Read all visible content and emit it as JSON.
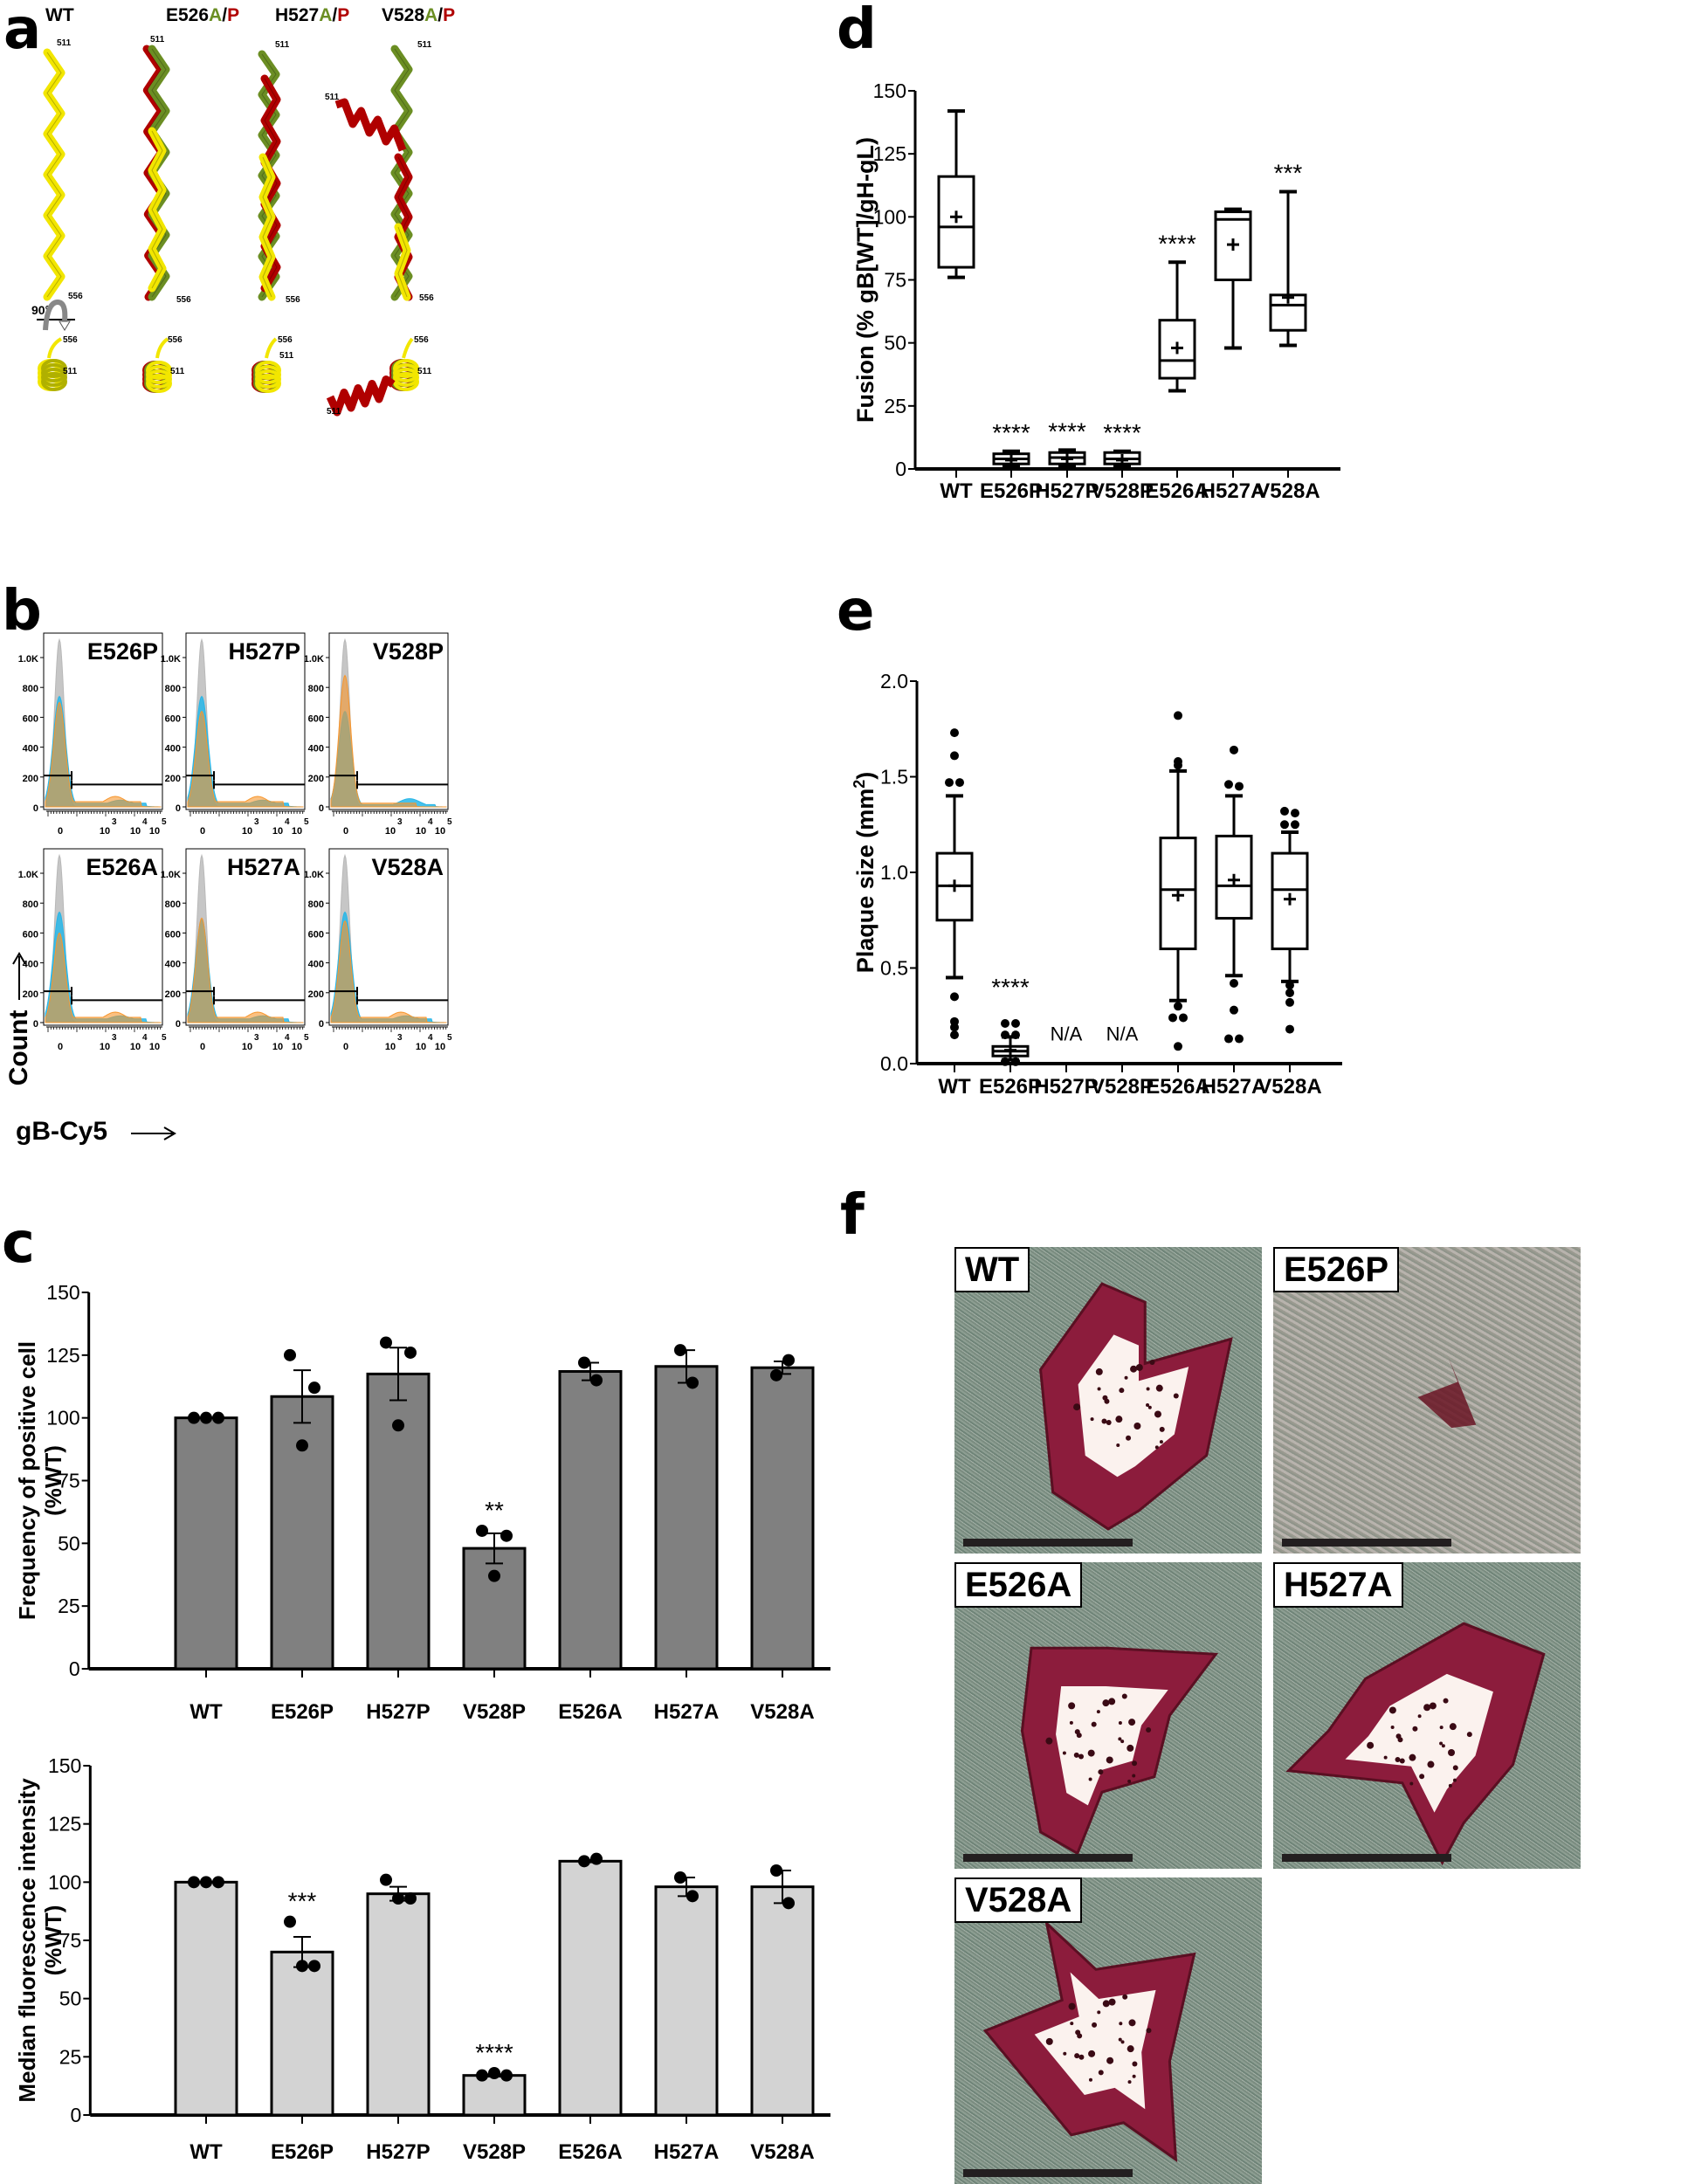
{
  "panels": {
    "a": {
      "letter": "a",
      "columns": [
        {
          "title": "WT",
          "title_parts": [
            {
              "text": "WT",
              "color": "#000000"
            }
          ]
        },
        {
          "title": "E526A/P",
          "title_parts": [
            {
              "text": "E526",
              "color": "#000000"
            },
            {
              "text": "A",
              "color": "#6b8e23"
            },
            {
              "text": "/",
              "color": "#000000"
            },
            {
              "text": "P",
              "color": "#b00000"
            }
          ]
        },
        {
          "title": "H527A/P",
          "title_parts": [
            {
              "text": "H527",
              "color": "#000000"
            },
            {
              "text": "A",
              "color": "#6b8e23"
            },
            {
              "text": "/",
              "color": "#000000"
            },
            {
              "text": "P",
              "color": "#b00000"
            }
          ]
        },
        {
          "title": "V528A/P",
          "title_parts": [
            {
              "text": "V528",
              "color": "#000000"
            },
            {
              "text": "A",
              "color": "#6b8e23"
            },
            {
              "text": "/",
              "color": "#000000"
            },
            {
              "text": "P",
              "color": "#b00000"
            }
          ]
        }
      ],
      "residue_start": "511",
      "residue_end": "556",
      "rotation_label": "90°",
      "colors": {
        "wt": "#f2e600",
        "ala": "#6b8e23",
        "pro": "#b00000"
      }
    },
    "b": {
      "letter": "b",
      "y_axis_label": "Count",
      "x_axis_label": "gB-Cy5",
      "y_ticks": [
        "0",
        "200",
        "400",
        "600",
        "800",
        "1.0K"
      ],
      "x_ticks": [
        "0",
        "10^3",
        "10^4",
        "10^5"
      ],
      "histograms": [
        "E526P",
        "H527P",
        "V528P",
        "E526A",
        "H527A",
        "V528A"
      ],
      "colors": {
        "control": "#b8b8b8",
        "wt": "#27b6e8",
        "mutant": "#f7962d",
        "overlap": "#9a9a6c"
      }
    },
    "c": {
      "letter": "c"
    },
    "d": {
      "letter": "d"
    },
    "e": {
      "letter": "e"
    },
    "f": {
      "letter": "f",
      "images": [
        {
          "label": "WT"
        },
        {
          "label": "E526P"
        },
        {
          "label": "E526A"
        },
        {
          "label": "H527A"
        },
        {
          "label": "V528A"
        }
      ]
    }
  },
  "chart_data": [
    {
      "id": "c_top",
      "type": "bar",
      "title": "",
      "xlabel": "",
      "ylabel": "Frequency of positive cell (%WT)",
      "ylabel_lines": [
        "Frequency of positive cell",
        "(%WT)"
      ],
      "categories": [
        "WT",
        "E526P",
        "H527P",
        "V528P",
        "E526A",
        "H527A",
        "V528A"
      ],
      "values": [
        100,
        108.5,
        117.5,
        48,
        118.5,
        120.5,
        120
      ],
      "sem": [
        0,
        10.5,
        10.5,
        6,
        3.5,
        6.5,
        2.5
      ],
      "points": [
        [
          100,
          100,
          100
        ],
        [
          125,
          89,
          112
        ],
        [
          130,
          97,
          126
        ],
        [
          55,
          37,
          53
        ],
        [
          122,
          115
        ],
        [
          127,
          114
        ],
        [
          117,
          123
        ]
      ],
      "significance": [
        "",
        "",
        "",
        "**",
        "",
        "",
        ""
      ],
      "ylim": [
        0,
        150
      ],
      "yticks": [
        0,
        25,
        50,
        75,
        100,
        125,
        150
      ],
      "bar_color": "#808080"
    },
    {
      "id": "c_bottom",
      "type": "bar",
      "title": "",
      "xlabel": "",
      "ylabel": "Median fluorescence intensity (%WT)",
      "ylabel_lines": [
        "Median fluorescence intensity",
        "(%WT)"
      ],
      "categories": [
        "WT",
        "E526P",
        "H527P",
        "V528P",
        "E526A",
        "H527A",
        "V528A"
      ],
      "values": [
        100,
        70,
        95,
        17,
        109,
        98,
        98
      ],
      "sem": [
        0,
        6.5,
        3,
        0.5,
        0.5,
        4,
        7
      ],
      "points": [
        [
          100,
          100,
          100
        ],
        [
          83,
          64,
          64
        ],
        [
          101,
          93,
          93
        ],
        [
          17,
          18,
          17
        ],
        [
          109,
          110
        ],
        [
          102,
          94
        ],
        [
          105,
          91
        ]
      ],
      "significance": [
        "",
        "***",
        "",
        "****",
        "",
        "",
        ""
      ],
      "ylim": [
        0,
        150
      ],
      "yticks": [
        0,
        25,
        50,
        75,
        100,
        125,
        150
      ],
      "bar_color": "#d3d3d3"
    },
    {
      "id": "d",
      "type": "box",
      "title": "",
      "xlabel": "",
      "ylabel": "Fusion (% gB[WT]/gH-gL)",
      "categories": [
        "WT",
        "E526P",
        "H527P",
        "V528P",
        "E526A",
        "H527A",
        "V528A"
      ],
      "boxes": [
        {
          "min": 76,
          "q1": 80,
          "median": 96,
          "q3": 116,
          "max": 142,
          "mean": 100
        },
        {
          "min": 1,
          "q1": 2,
          "median": 4,
          "q3": 6,
          "max": 7,
          "mean": 3.5
        },
        {
          "min": 1,
          "q1": 2,
          "median": 4.5,
          "q3": 6.5,
          "max": 7.5,
          "mean": 4
        },
        {
          "min": 1,
          "q1": 2,
          "median": 4,
          "q3": 6.5,
          "max": 7,
          "mean": 3.5
        },
        {
          "min": 31,
          "q1": 36,
          "median": 43,
          "q3": 59,
          "max": 82,
          "mean": 48
        },
        {
          "min": 48,
          "q1": 75,
          "median": 99,
          "q3": 102,
          "max": 103,
          "mean": 89
        },
        {
          "min": 49,
          "q1": 55,
          "median": 65,
          "q3": 69,
          "max": 110,
          "mean": 68
        }
      ],
      "significance": [
        "",
        "****",
        "****",
        "****",
        "****",
        "",
        "***"
      ],
      "ylim": [
        0,
        150
      ],
      "yticks": [
        0,
        25,
        50,
        75,
        100,
        125,
        150
      ]
    },
    {
      "id": "e",
      "type": "box",
      "title": "",
      "xlabel": "",
      "ylabel": "Plaque size (mm²)",
      "ylabel_main": "Plaque size  (mm",
      "ylabel_sup": "2",
      "ylabel_end": ")",
      "categories": [
        "WT",
        "E526P",
        "H527P",
        "V528P",
        "E526A",
        "H527A",
        "V528A"
      ],
      "boxes": [
        {
          "min": 0.45,
          "q1": 0.75,
          "median": 0.93,
          "q3": 1.1,
          "max": 1.4,
          "mean": 0.93,
          "outliers": [
            1.73,
            1.61,
            1.47,
            1.47,
            0.35,
            0.22,
            0.19,
            0.15
          ]
        },
        {
          "min": 0.02,
          "q1": 0.04,
          "median": 0.065,
          "q3": 0.09,
          "max": 0.14,
          "mean": 0.07,
          "outliers": [
            0.21,
            0.21,
            0.15,
            0.15,
            0.01,
            0.01,
            0.01
          ]
        },
        null,
        null,
        {
          "min": 0.33,
          "q1": 0.6,
          "median": 0.91,
          "q3": 1.18,
          "max": 1.53,
          "mean": 0.88,
          "outliers": [
            1.82,
            1.58,
            1.56,
            0.3,
            0.24,
            0.24,
            0.09
          ]
        },
        {
          "min": 0.46,
          "q1": 0.76,
          "median": 0.93,
          "q3": 1.19,
          "max": 1.4,
          "mean": 0.96,
          "outliers": [
            1.64,
            1.46,
            1.45,
            0.42,
            0.28,
            0.13,
            0.13
          ]
        },
        {
          "min": 0.43,
          "q1": 0.6,
          "median": 0.91,
          "q3": 1.1,
          "max": 1.21,
          "mean": 0.86,
          "outliers": [
            1.32,
            1.31,
            1.25,
            1.25,
            0.41,
            0.37,
            0.32,
            0.18
          ]
        }
      ],
      "annotations": [
        "",
        "****",
        "N/A",
        "N/A",
        "",
        "",
        ""
      ],
      "ylim": [
        0,
        2.0
      ],
      "yticks": [
        "0.0",
        "0.5",
        "1.0",
        "1.5",
        "2.0"
      ]
    }
  ]
}
